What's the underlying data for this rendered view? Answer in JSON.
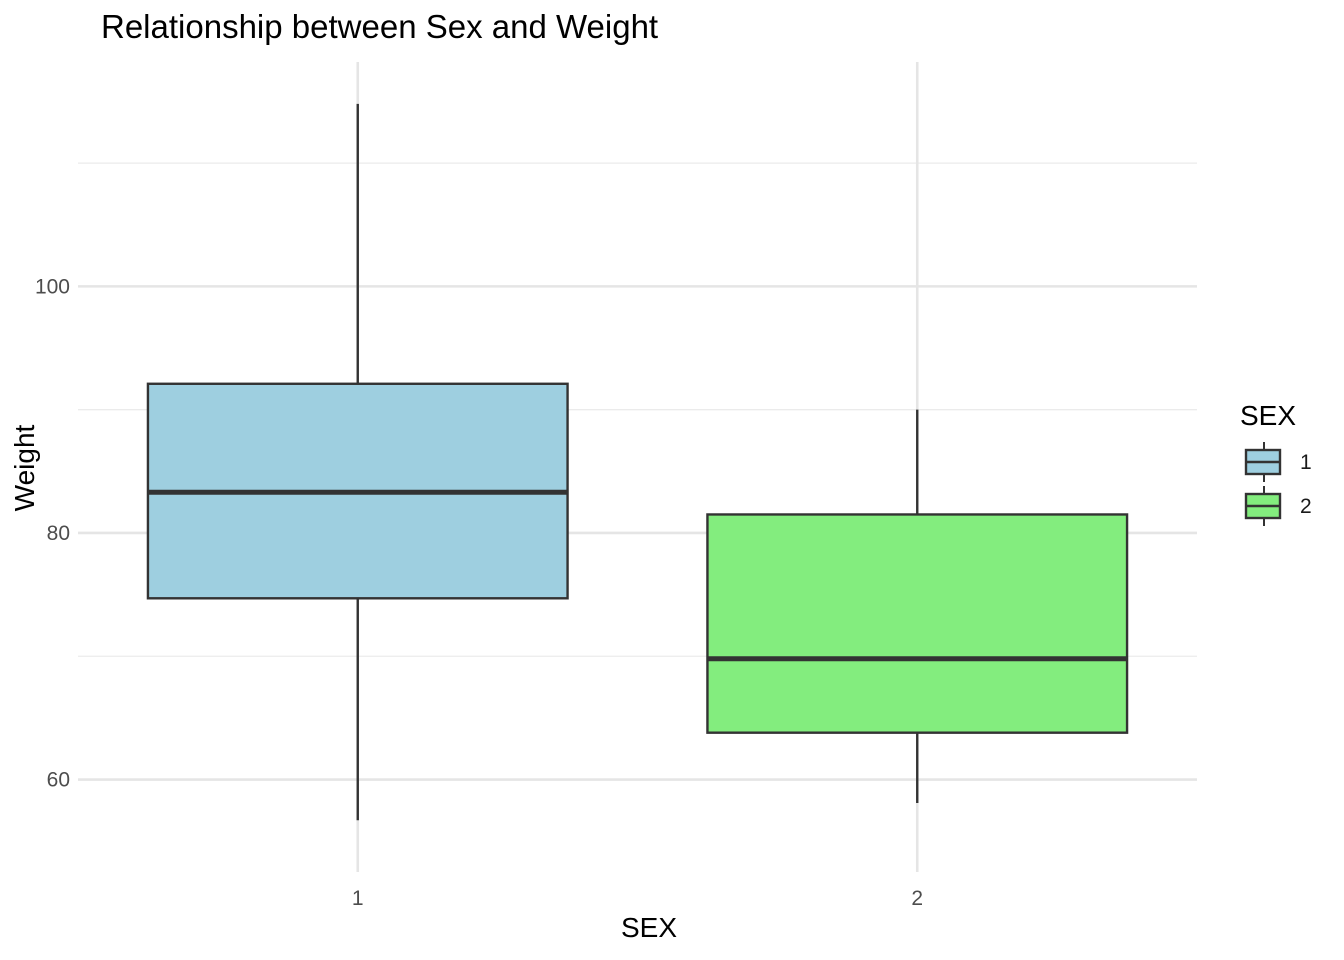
{
  "chart_data": {
    "type": "boxplot",
    "title": "Relationship between Sex and Weight",
    "xlabel": "SEX",
    "ylabel": "Weight",
    "categories": [
      "1",
      "2"
    ],
    "boxes": [
      {
        "category": "1",
        "min": 56.7,
        "q1": 74.7,
        "median": 83.3,
        "q3": 92.1,
        "max": 114.8,
        "color": "#9ECFE0"
      },
      {
        "category": "2",
        "min": 58.1,
        "q1": 63.8,
        "median": 69.8,
        "q3": 81.5,
        "max": 90.0,
        "color": "#83ED7E"
      }
    ],
    "yticks": [
      60,
      80,
      100
    ],
    "ytick_labels": [
      "60",
      "80",
      "100"
    ],
    "ylim": [
      52.5,
      118.2
    ],
    "grid": true,
    "legend": {
      "title": "SEX",
      "position": "right",
      "items": [
        {
          "label": "1",
          "color": "#9ECFE0"
        },
        {
          "label": "2",
          "color": "#83ED7E"
        }
      ]
    }
  }
}
